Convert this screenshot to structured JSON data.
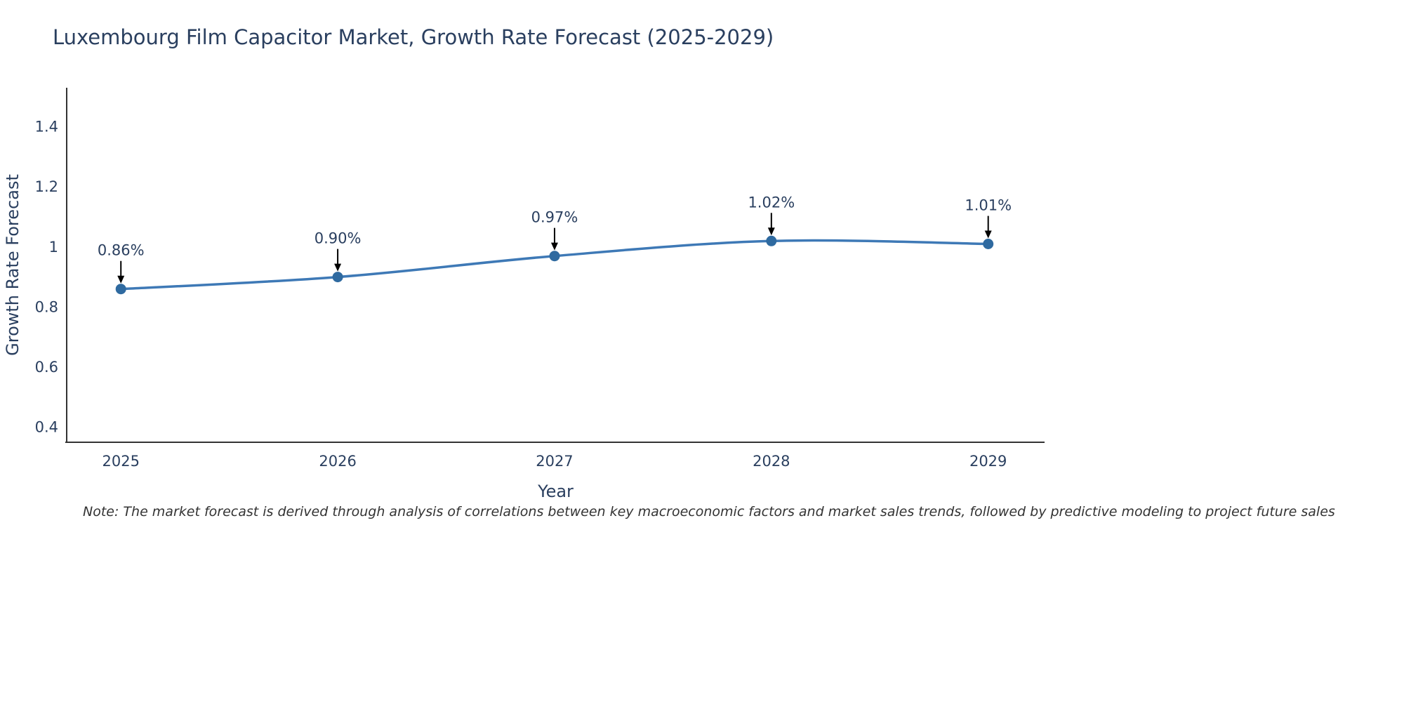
{
  "page": {
    "background": "#ffffff"
  },
  "chart_data": {
    "type": "line",
    "title": "Luxembourg Film Capacitor Market, Growth Rate Forecast (2025-2029)",
    "xlabel": "Year",
    "ylabel": "Growth Rate Forecast",
    "categories": [
      "2025",
      "2026",
      "2027",
      "2028",
      "2029"
    ],
    "x": [
      2025,
      2026,
      2027,
      2028,
      2029
    ],
    "series": [
      {
        "name": "Growth Rate Forecast",
        "values": [
          0.86,
          0.9,
          0.97,
          1.02,
          1.01
        ]
      }
    ],
    "point_labels": [
      "0.86%",
      "0.90%",
      "0.97%",
      "1.02%",
      "1.01%"
    ],
    "xlim": [
      2024.75,
      2029.26
    ],
    "ylim": [
      0.35,
      1.53
    ],
    "yticks": [
      0.4,
      0.6,
      0.8,
      1,
      1.2,
      1.4
    ],
    "ytick_labels": [
      "0.4",
      "0.6",
      "0.8",
      "1",
      "1.2",
      "1.4"
    ],
    "grid": false,
    "legend_position": "none",
    "line_color": "#3e79b6",
    "marker_color": "#2f6aa0",
    "axis_color": "#333333",
    "text_color": "#2a3f5f",
    "annotation_color": "#2a3f5f",
    "arrow_color": "#000000"
  },
  "note": "Note: The market forecast is derived through analysis of correlations between key macroeconomic factors and market sales trends, followed by predictive modeling to project future sales"
}
